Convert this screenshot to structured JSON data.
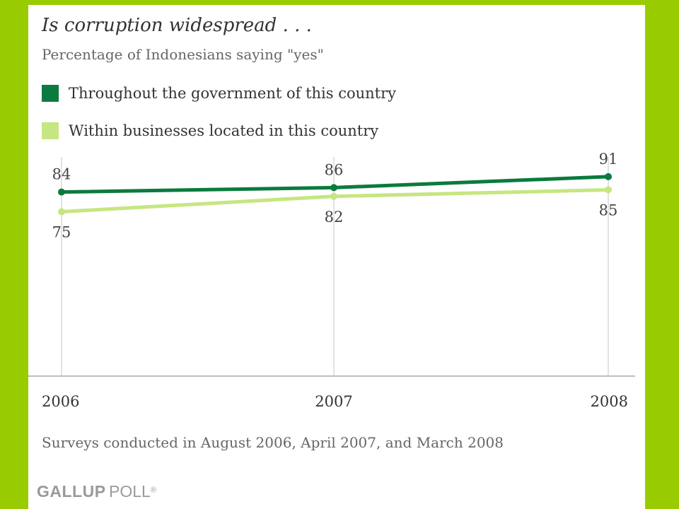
{
  "chart_data": {
    "type": "line",
    "title": "Is corruption widespread . . .",
    "subtitle": "Percentage of Indonesians saying \"yes\"",
    "categories": [
      "2006",
      "2007",
      "2008"
    ],
    "series": [
      {
        "name": "Throughout the government of this country",
        "color": "#0b7a3e",
        "values": [
          84,
          86,
          91
        ]
      },
      {
        "name": "Within businesses located in this country",
        "color": "#c6e681",
        "values": [
          75,
          82,
          85
        ]
      }
    ],
    "ylim": [
      0,
      100
    ],
    "grid": "vertical",
    "legend": "top-left",
    "note": "Surveys conducted in August 2006, April 2007, and March 2008"
  },
  "brand": {
    "bold": "GALLUP",
    "light": "POLL",
    "mark": "®"
  }
}
